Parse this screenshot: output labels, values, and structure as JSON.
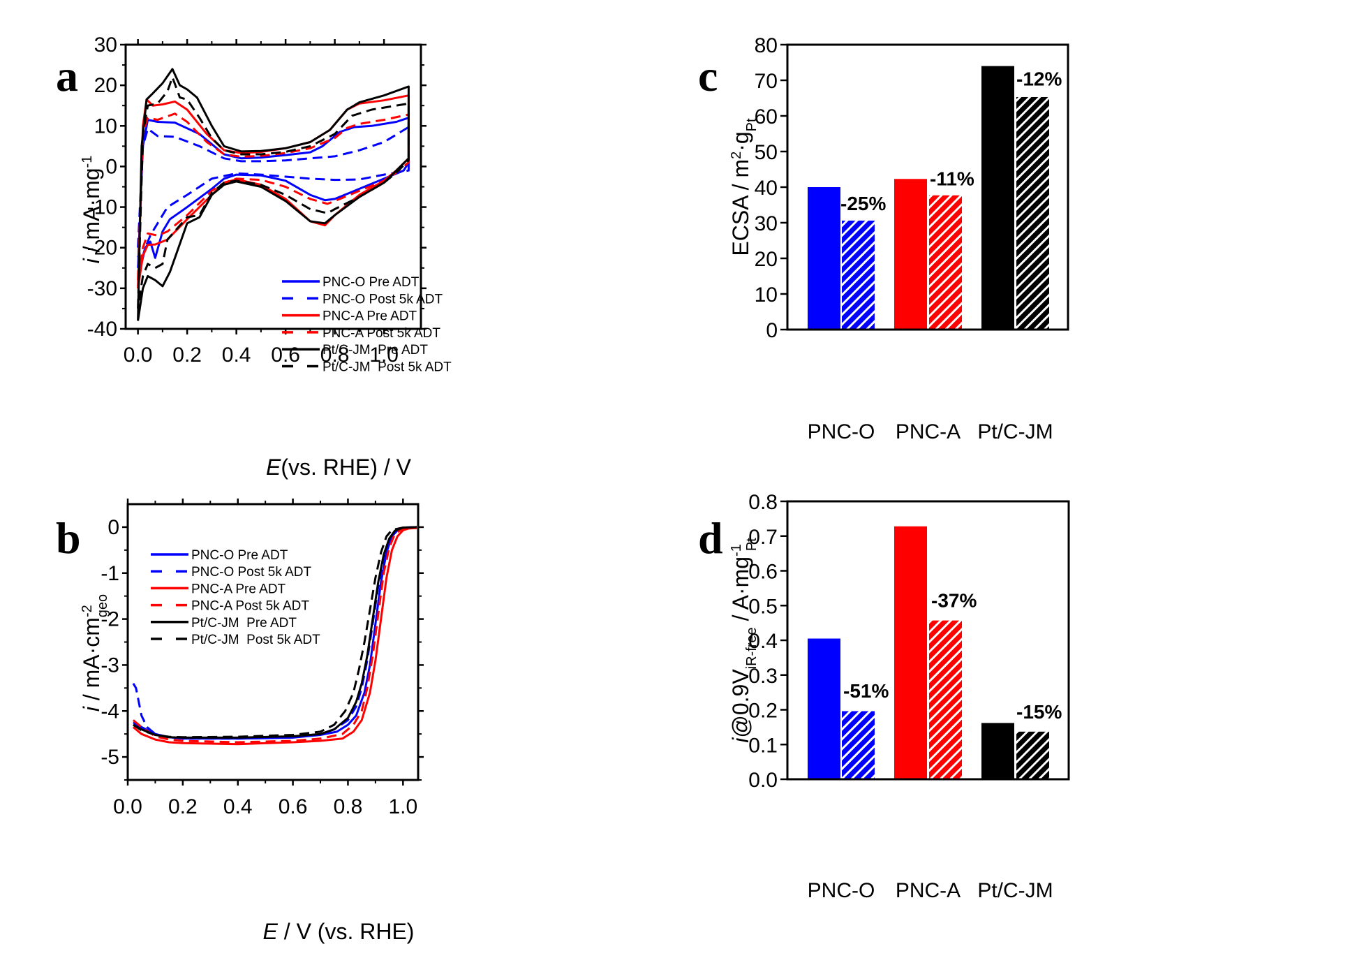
{
  "series_styles": [
    {
      "name": "PNC-O Pre ADT",
      "color": "#0000ff",
      "dash": "solid"
    },
    {
      "name": "PNC-O Post 5k ADT",
      "color": "#0000ff",
      "dash": "dashed"
    },
    {
      "name": "PNC-A Pre ADT",
      "color": "#ff0000",
      "dash": "solid"
    },
    {
      "name": "PNC-A Post 5k ADT",
      "color": "#ff0000",
      "dash": "dashed"
    },
    {
      "name": "Pt/C-JM  Pre ADT",
      "color": "#000000",
      "dash": "solid"
    },
    {
      "name": "Pt/C-JM  Post 5k ADT",
      "color": "#000000",
      "dash": "dashed"
    }
  ],
  "chart_data": [
    {
      "panel": "a",
      "type": "line",
      "title": "",
      "xlabel": "E(vs. RHE) / V",
      "ylabel": "i / mA·mg-1",
      "xlim": [
        -0.05,
        1.15
      ],
      "ylim": [
        -40,
        30
      ],
      "xticks": [
        "0.0",
        "0.2",
        "0.4",
        "0.6",
        "0.8",
        "1.0"
      ],
      "xtick_values": [
        0,
        0.2,
        0.4,
        0.6,
        0.8,
        1.0
      ],
      "yticks": [
        "30",
        "20",
        "10",
        "0",
        "-10",
        "-20",
        "-30",
        "-40"
      ],
      "ytick_values": [
        30,
        20,
        10,
        0,
        -10,
        -20,
        -30,
        -40
      ],
      "legend_position": "bottom-center",
      "series": [
        {
          "name": "PNC-O Pre ADT",
          "x": [
            0.0,
            0.02,
            0.04,
            0.08,
            0.15,
            0.25,
            0.35,
            0.42,
            0.5,
            0.6,
            0.7,
            0.75,
            0.82,
            0.88,
            0.95,
            1.05,
            1.1,
            1.1,
            1.08,
            1.0,
            0.9,
            0.8,
            0.76,
            0.7,
            0.6,
            0.5,
            0.4,
            0.35,
            0.3,
            0.2,
            0.13,
            0.1,
            0.07,
            0.05,
            0.03,
            0.01,
            0.0
          ],
          "y": [
            -25,
            5,
            11.5,
            11,
            10.8,
            8,
            3,
            2,
            2.2,
            2.8,
            3.5,
            5,
            8.5,
            9.7,
            10,
            11,
            12,
            1,
            -1,
            -3,
            -5.5,
            -8,
            -8.3,
            -7,
            -3.5,
            -2.2,
            -2,
            -3,
            -5.5,
            -10,
            -13,
            -16,
            -22.5,
            -18.5,
            -20,
            -25,
            -25
          ]
        },
        {
          "name": "PNC-O Post 5k ADT",
          "x": [
            0.0,
            0.02,
            0.04,
            0.08,
            0.15,
            0.25,
            0.35,
            0.42,
            0.5,
            0.6,
            0.7,
            0.8,
            0.9,
            1.0,
            1.1,
            1.1,
            1.0,
            0.9,
            0.8,
            0.7,
            0.6,
            0.5,
            0.4,
            0.3,
            0.2,
            0.12,
            0.08,
            0.05,
            0.03,
            0.01,
            0.0
          ],
          "y": [
            -20,
            5,
            9.3,
            7.5,
            7.3,
            5,
            2,
            1.3,
            1.3,
            1.5,
            2,
            2.5,
            4,
            6,
            9.7,
            -1,
            -2,
            -3.2,
            -3.3,
            -3,
            -2.5,
            -2,
            -1.7,
            -3,
            -7,
            -10,
            -14,
            -17,
            -20,
            -24,
            -22
          ]
        },
        {
          "name": "PNC-A Pre ADT",
          "x": [
            0.0,
            0.02,
            0.035,
            0.06,
            0.1,
            0.15,
            0.2,
            0.28,
            0.35,
            0.42,
            0.5,
            0.6,
            0.7,
            0.78,
            0.85,
            0.9,
            1.0,
            1.1,
            1.1,
            1.05,
            1.0,
            0.9,
            0.8,
            0.76,
            0.7,
            0.6,
            0.5,
            0.4,
            0.35,
            0.3,
            0.2,
            0.12,
            0.07,
            0.04,
            0.02,
            0.0
          ],
          "y": [
            -30,
            10,
            16.5,
            15,
            15.3,
            16,
            14,
            8,
            4,
            3.3,
            3.6,
            4.5,
            6,
            9,
            14,
            15.5,
            16.3,
            17.5,
            2,
            -1,
            -3.5,
            -7,
            -12,
            -14.5,
            -13.5,
            -8,
            -4.5,
            -3.2,
            -4,
            -7,
            -13,
            -18,
            -19.2,
            -19.3,
            -22,
            -30
          ]
        },
        {
          "name": "PNC-A Post 5k ADT",
          "x": [
            0.0,
            0.02,
            0.04,
            0.08,
            0.15,
            0.2,
            0.28,
            0.35,
            0.42,
            0.5,
            0.6,
            0.7,
            0.8,
            0.85,
            0.9,
            1.0,
            1.1,
            1.1,
            1.05,
            1.0,
            0.9,
            0.8,
            0.77,
            0.7,
            0.6,
            0.5,
            0.4,
            0.35,
            0.3,
            0.2,
            0.12,
            0.08,
            0.04,
            0.02,
            0.0
          ],
          "y": [
            -28,
            8,
            12,
            11.5,
            13,
            11,
            6,
            3,
            2.4,
            2.6,
            3.3,
            4.5,
            7,
            9.5,
            10.5,
            11.5,
            12.8,
            1,
            -1.5,
            -3.5,
            -6,
            -8.5,
            -9.2,
            -8,
            -5,
            -3.3,
            -3,
            -4,
            -6,
            -12,
            -16,
            -17,
            -16.5,
            -20,
            -28
          ]
        },
        {
          "name": "Pt/C-JM  Pre ADT",
          "x": [
            0.0,
            0.015,
            0.035,
            0.06,
            0.1,
            0.14,
            0.17,
            0.2,
            0.24,
            0.3,
            0.35,
            0.42,
            0.5,
            0.6,
            0.7,
            0.78,
            0.85,
            0.9,
            1.0,
            1.1,
            1.1,
            1.05,
            1.0,
            0.9,
            0.8,
            0.76,
            0.7,
            0.6,
            0.5,
            0.4,
            0.35,
            0.3,
            0.25,
            0.2,
            0.13,
            0.1,
            0.07,
            0.04,
            0.02,
            0.0
          ],
          "y": [
            -38,
            5,
            16.5,
            18,
            20.5,
            24,
            20,
            19,
            17,
            10,
            5,
            3.7,
            3.8,
            4.5,
            6,
            9,
            14,
            15.8,
            17.5,
            19.7,
            2,
            -1,
            -4,
            -7.5,
            -12,
            -14,
            -13.5,
            -8.5,
            -5,
            -3.7,
            -4.5,
            -7,
            -12.5,
            -14,
            -26,
            -29.5,
            -28,
            -27,
            -30,
            -38
          ]
        },
        {
          "name": "Pt/C-JM  Post 5k ADT",
          "x": [
            0.0,
            0.02,
            0.04,
            0.08,
            0.12,
            0.14,
            0.17,
            0.2,
            0.25,
            0.3,
            0.35,
            0.42,
            0.5,
            0.6,
            0.7,
            0.8,
            0.87,
            0.95,
            1.0,
            1.1,
            1.1,
            1.05,
            1.0,
            0.9,
            0.8,
            0.77,
            0.7,
            0.6,
            0.5,
            0.4,
            0.35,
            0.3,
            0.25,
            0.2,
            0.12,
            0.1,
            0.07,
            0.04,
            0.02,
            0.0
          ],
          "y": [
            -35,
            8,
            15,
            15.5,
            18.5,
            22,
            17,
            16.5,
            12,
            7,
            4,
            3,
            3,
            3.6,
            5,
            8,
            12.5,
            14,
            14.5,
            15.5,
            1.5,
            -1.5,
            -4,
            -7.5,
            -10.5,
            -11.5,
            -10.5,
            -7,
            -4.5,
            -3.5,
            -4,
            -6.5,
            -12,
            -12.5,
            -18,
            -24,
            -25,
            -24,
            -27,
            -35
          ]
        }
      ]
    },
    {
      "panel": "b",
      "type": "line",
      "title": "",
      "xlabel": "E / V (vs. RHE)",
      "ylabel": "i / mA·cm-2geo",
      "xlim": [
        0.0,
        1.055
      ],
      "ylim": [
        -5.5,
        0.5
      ],
      "xticks": [
        "0.0",
        "0.2",
        "0.4",
        "0.6",
        "0.8",
        "1.0"
      ],
      "xtick_values": [
        0,
        0.2,
        0.4,
        0.6,
        0.8,
        1.0
      ],
      "yticks": [
        "0",
        "-1",
        "-2",
        "-3",
        "-4",
        "-5"
      ],
      "ytick_values": [
        0,
        -1,
        -2,
        -3,
        -4,
        -5
      ],
      "legend_position": "top-left",
      "series": [
        {
          "name": "PNC-O Pre ADT",
          "x": [
            0.02,
            0.05,
            0.1,
            0.15,
            0.2,
            0.4,
            0.6,
            0.7,
            0.76,
            0.8,
            0.83,
            0.86,
            0.88,
            0.9,
            0.92,
            0.94,
            0.96,
            0.98,
            1.0,
            1.05
          ],
          "y": [
            -4.25,
            -4.35,
            -4.5,
            -4.57,
            -4.6,
            -4.6,
            -4.58,
            -4.52,
            -4.45,
            -4.3,
            -4.1,
            -3.6,
            -3.0,
            -2.1,
            -1.2,
            -0.55,
            -0.2,
            -0.07,
            -0.02,
            0.0
          ]
        },
        {
          "name": "PNC-O Post 5k ADT",
          "x": [
            0.02,
            0.03,
            0.05,
            0.07,
            0.1,
            0.15,
            0.2,
            0.4,
            0.6,
            0.7,
            0.75,
            0.8,
            0.83,
            0.85,
            0.87,
            0.89,
            0.91,
            0.93,
            0.95,
            0.98,
            1.0,
            1.05
          ],
          "y": [
            -3.4,
            -3.5,
            -4.1,
            -4.35,
            -4.5,
            -4.57,
            -4.6,
            -4.6,
            -4.57,
            -4.5,
            -4.4,
            -4.2,
            -3.9,
            -3.5,
            -2.9,
            -2.1,
            -1.3,
            -0.65,
            -0.25,
            -0.05,
            -0.01,
            0.0
          ]
        },
        {
          "name": "PNC-A Pre ADT",
          "x": [
            0.02,
            0.05,
            0.1,
            0.15,
            0.2,
            0.4,
            0.6,
            0.7,
            0.78,
            0.82,
            0.85,
            0.88,
            0.9,
            0.92,
            0.94,
            0.96,
            0.98,
            1.0,
            1.02,
            1.05
          ],
          "y": [
            -4.35,
            -4.5,
            -4.62,
            -4.68,
            -4.7,
            -4.72,
            -4.68,
            -4.65,
            -4.6,
            -4.45,
            -4.2,
            -3.6,
            -2.9,
            -2.0,
            -1.1,
            -0.5,
            -0.2,
            -0.07,
            -0.03,
            -0.02
          ]
        },
        {
          "name": "PNC-A Post 5k ADT",
          "x": [
            0.02,
            0.05,
            0.1,
            0.15,
            0.2,
            0.4,
            0.6,
            0.7,
            0.78,
            0.82,
            0.85,
            0.87,
            0.89,
            0.91,
            0.93,
            0.95,
            0.97,
            1.0,
            1.05
          ],
          "y": [
            -4.2,
            -4.35,
            -4.55,
            -4.62,
            -4.65,
            -4.68,
            -4.65,
            -4.6,
            -4.5,
            -4.3,
            -4.0,
            -3.5,
            -2.8,
            -1.9,
            -1.0,
            -0.45,
            -0.15,
            -0.03,
            0.0
          ]
        },
        {
          "name": "Pt/C-JM  Pre ADT",
          "x": [
            0.02,
            0.05,
            0.1,
            0.15,
            0.2,
            0.4,
            0.6,
            0.7,
            0.75,
            0.8,
            0.83,
            0.85,
            0.87,
            0.89,
            0.91,
            0.93,
            0.95,
            0.97,
            1.0,
            1.05
          ],
          "y": [
            -4.3,
            -4.4,
            -4.52,
            -4.57,
            -4.58,
            -4.58,
            -4.55,
            -4.5,
            -4.4,
            -4.15,
            -3.8,
            -3.4,
            -2.8,
            -2.0,
            -1.2,
            -0.6,
            -0.25,
            -0.08,
            -0.01,
            0.0
          ]
        },
        {
          "name": "Pt/C-JM  Post 5k ADT",
          "x": [
            0.02,
            0.05,
            0.1,
            0.15,
            0.2,
            0.4,
            0.6,
            0.7,
            0.75,
            0.79,
            0.82,
            0.84,
            0.86,
            0.88,
            0.9,
            0.92,
            0.94,
            0.96,
            1.0,
            1.05
          ],
          "y": [
            -4.3,
            -4.42,
            -4.52,
            -4.56,
            -4.57,
            -4.56,
            -4.52,
            -4.45,
            -4.3,
            -4.0,
            -3.6,
            -3.1,
            -2.5,
            -1.8,
            -1.1,
            -0.55,
            -0.2,
            -0.06,
            -0.01,
            0.0
          ]
        }
      ]
    },
    {
      "panel": "c",
      "type": "bar",
      "title": "",
      "xlabel": "",
      "ylabel": "ECSA / m2·gPt",
      "ylim": [
        0,
        80
      ],
      "yticks": [
        "0",
        "10",
        "20",
        "30",
        "40",
        "50",
        "60",
        "70",
        "80"
      ],
      "ytick_values": [
        0,
        10,
        20,
        30,
        40,
        50,
        60,
        70,
        80
      ],
      "categories": [
        "PNC-O",
        "PNC-A",
        "Pt/C-JM"
      ],
      "series": [
        {
          "name": "Pre ADT",
          "pattern": "solid",
          "values": [
            40.0,
            42.3,
            74.0
          ]
        },
        {
          "name": "Post 5k ADT",
          "pattern": "hatched",
          "values": [
            30.6,
            37.7,
            65.3
          ]
        }
      ],
      "colors": [
        "#0000ff",
        "#ff0000",
        "#000000"
      ],
      "annotations": [
        "-25%",
        "-11%",
        "-12%"
      ]
    },
    {
      "panel": "d",
      "type": "bar",
      "title": "",
      "xlabel": "",
      "ylabel": "i@0.9ViR-free / A·mg-1Pt",
      "ylim": [
        0,
        0.8
      ],
      "yticks": [
        "0.0",
        "0.1",
        "0.2",
        "0.3",
        "0.4",
        "0.5",
        "0.6",
        "0.7",
        "0.8"
      ],
      "ytick_values": [
        0,
        0.1,
        0.2,
        0.3,
        0.4,
        0.5,
        0.6,
        0.7,
        0.8
      ],
      "categories": [
        "PNC-O",
        "PNC-A",
        "Pt/C-JM"
      ],
      "series": [
        {
          "name": "Pre ADT",
          "pattern": "solid",
          "values": [
            0.405,
            0.728,
            0.162
          ]
        },
        {
          "name": "Post 5k ADT",
          "pattern": "hatched",
          "values": [
            0.196,
            0.457,
            0.137
          ]
        }
      ],
      "colors": [
        "#0000ff",
        "#ff0000",
        "#000000"
      ],
      "annotations": [
        "-51%",
        "-37%",
        "-15%"
      ]
    }
  ],
  "panels": {
    "a": {
      "letter": "a"
    },
    "b": {
      "letter": "b"
    },
    "c": {
      "letter": "c"
    },
    "d": {
      "letter": "d"
    }
  },
  "labels": {
    "a_ylabel_main": "i",
    "a_ylabel_rest": " / mA·mg",
    "a_ylabel_sup": "-1",
    "a_xlabel_italic": "E",
    "a_xlabel_rest": "(vs. RHE) / V",
    "b_ylabel_main": "i",
    "b_ylabel_rest": " / mA·cm",
    "b_ylabel_sup": "-2",
    "b_ylabel_sub": "geo",
    "b_xlabel_italic": "E",
    "b_xlabel_rest": " / V (vs. RHE)",
    "c_ylabel_main": "ECSA / m",
    "c_ylabel_sup": "2",
    "c_ylabel_mid": "·g",
    "c_ylabel_sub": "Pt",
    "d_ylabel_italic": "i",
    "d_ylabel_main": "@0.9V",
    "d_ylabel_sub1": "iR-free",
    "d_ylabel_mid": " / A·mg",
    "d_ylabel_sup": "-1",
    "d_ylabel_sub2": "Pt"
  }
}
